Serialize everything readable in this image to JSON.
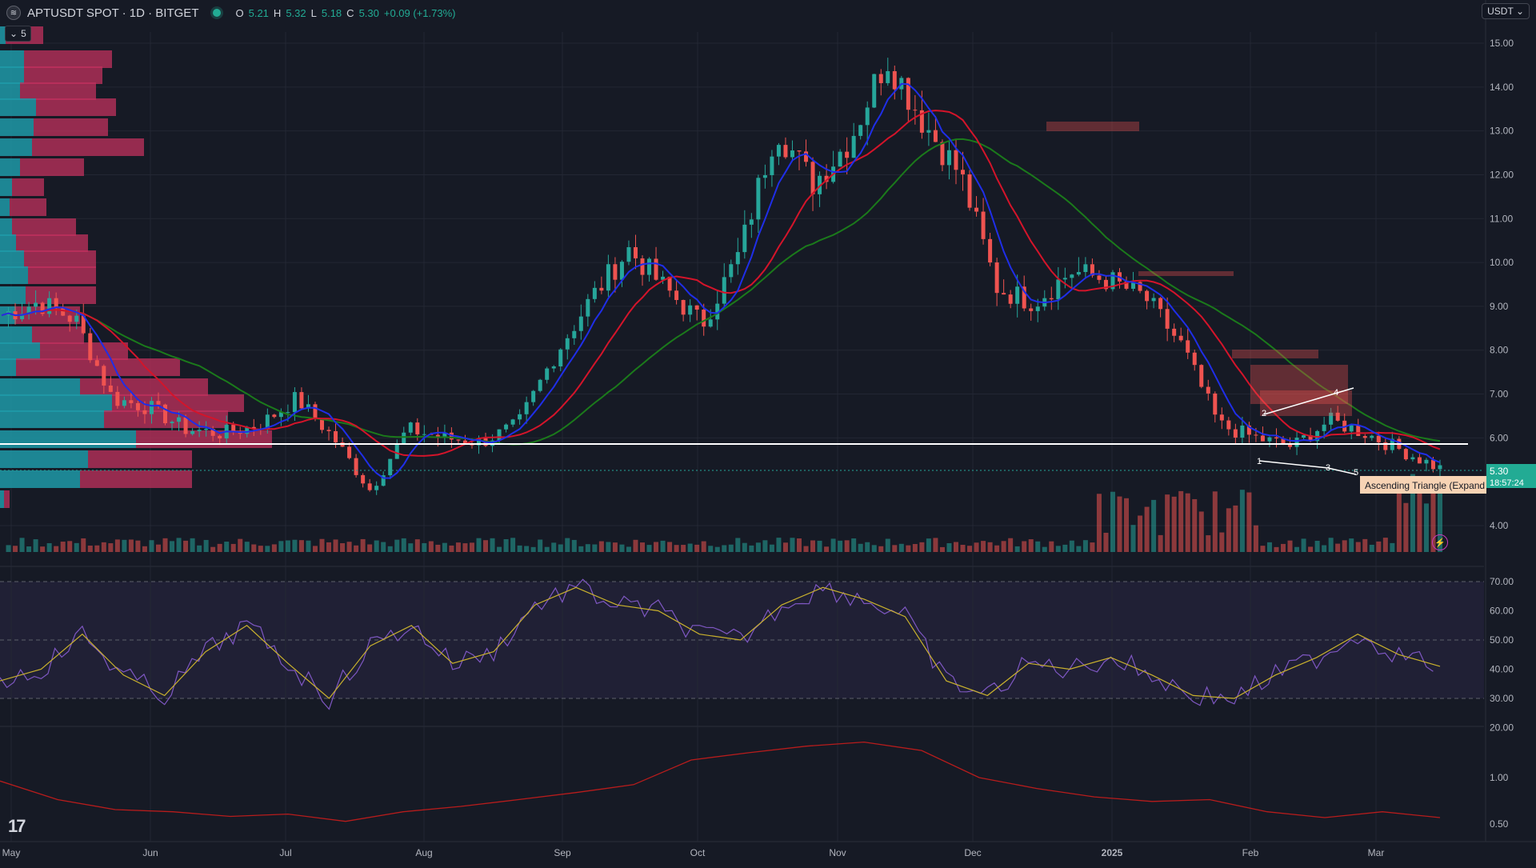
{
  "header": {
    "logo_icon": "aptos-logo-icon",
    "symbol_title": "APTUSDT SPOT · 1D · BITGET",
    "ohlc": {
      "o_label": "O",
      "o_value": "5.21",
      "h_label": "H",
      "h_value": "5.32",
      "l_label": "L",
      "l_value": "5.18",
      "c_label": "C",
      "c_value": "5.30",
      "change": "+0.09 (+1.73%)"
    }
  },
  "collapse": {
    "label": "5"
  },
  "currency": {
    "label": "USDT"
  },
  "price_scale": {
    "ticks": [
      "15.00",
      "14.00",
      "13.00",
      "12.00",
      "11.00",
      "10.00",
      "9.00",
      "8.00",
      "7.00",
      "6.00",
      "4.00"
    ],
    "last_price": "5.30",
    "countdown": "18:57:24"
  },
  "rsi_scale": {
    "ticks": [
      "70.00",
      "60.00",
      "50.00",
      "40.00",
      "30.00",
      "20.00"
    ]
  },
  "lower_scale": {
    "ticks": [
      "1.00",
      "0.50"
    ]
  },
  "time_axis": {
    "labels": [
      "May",
      "Jun",
      "Jul",
      "Aug",
      "Sep",
      "Oct",
      "Nov",
      "Dec",
      "2025",
      "Feb",
      "Mar"
    ]
  },
  "pattern": {
    "label": "Ascending Triangle (Expand",
    "points": [
      "1",
      "2",
      "3",
      "4",
      "5"
    ]
  },
  "colors": {
    "background": "#161a25",
    "up": "#26a69a",
    "down": "#ef5350",
    "ma_fast": "#1f2ee8",
    "ma_mid": "#d4142a",
    "ma_slow": "#1b7a1b",
    "rsi_line": "#7e57c2",
    "rsi_ma": "#c9b12d",
    "lower_line": "#b71c1c",
    "profile_up": "#1e9aa8",
    "profile_down": "#c2325e"
  },
  "chart_data": {
    "type": "candlestick",
    "title": "APTUSDT SPOT · 1D · BITGET",
    "ylim": [
      3.6,
      15.5
    ],
    "series_note": "approximate daily close path",
    "x": [
      "May",
      "Jun",
      "Jul",
      "Aug",
      "Sep",
      "Oct",
      "Nov",
      "Dec",
      "2025",
      "Feb",
      "Mar"
    ],
    "close_approx": [
      8.8,
      9.1,
      8.7,
      6.9,
      6.7,
      6.2,
      6.1,
      6.3,
      6.9,
      6.0,
      4.8,
      6.2,
      6.0,
      5.9,
      6.3,
      7.9,
      9.2,
      10.3,
      9.4,
      8.6,
      10.2,
      13.1,
      11.8,
      12.8,
      14.7,
      13.2,
      12.0,
      9.4,
      9.1,
      9.8,
      9.6,
      9.2,
      8.1,
      6.3,
      6.0,
      5.8,
      6.4,
      6.1,
      5.7,
      5.3
    ],
    "rsi_ylim": [
      20,
      75
    ],
    "rsi_approx": [
      36,
      40,
      52,
      38,
      31,
      46,
      55,
      42,
      30,
      48,
      55,
      42,
      46,
      62,
      68,
      62,
      60,
      52,
      50,
      62,
      68,
      64,
      58,
      36,
      31,
      42,
      40,
      44,
      38,
      31,
      30,
      38,
      44,
      52,
      45,
      41
    ],
    "lower_approx": [
      0.95,
      0.72,
      0.62,
      0.6,
      0.56,
      0.58,
      0.52,
      0.6,
      0.65,
      0.72,
      0.8,
      0.9,
      1.3,
      1.45,
      1.6,
      1.7,
      1.5,
      1.0,
      0.85,
      0.75,
      0.7,
      0.72,
      0.6,
      0.55,
      0.6,
      0.55
    ]
  }
}
